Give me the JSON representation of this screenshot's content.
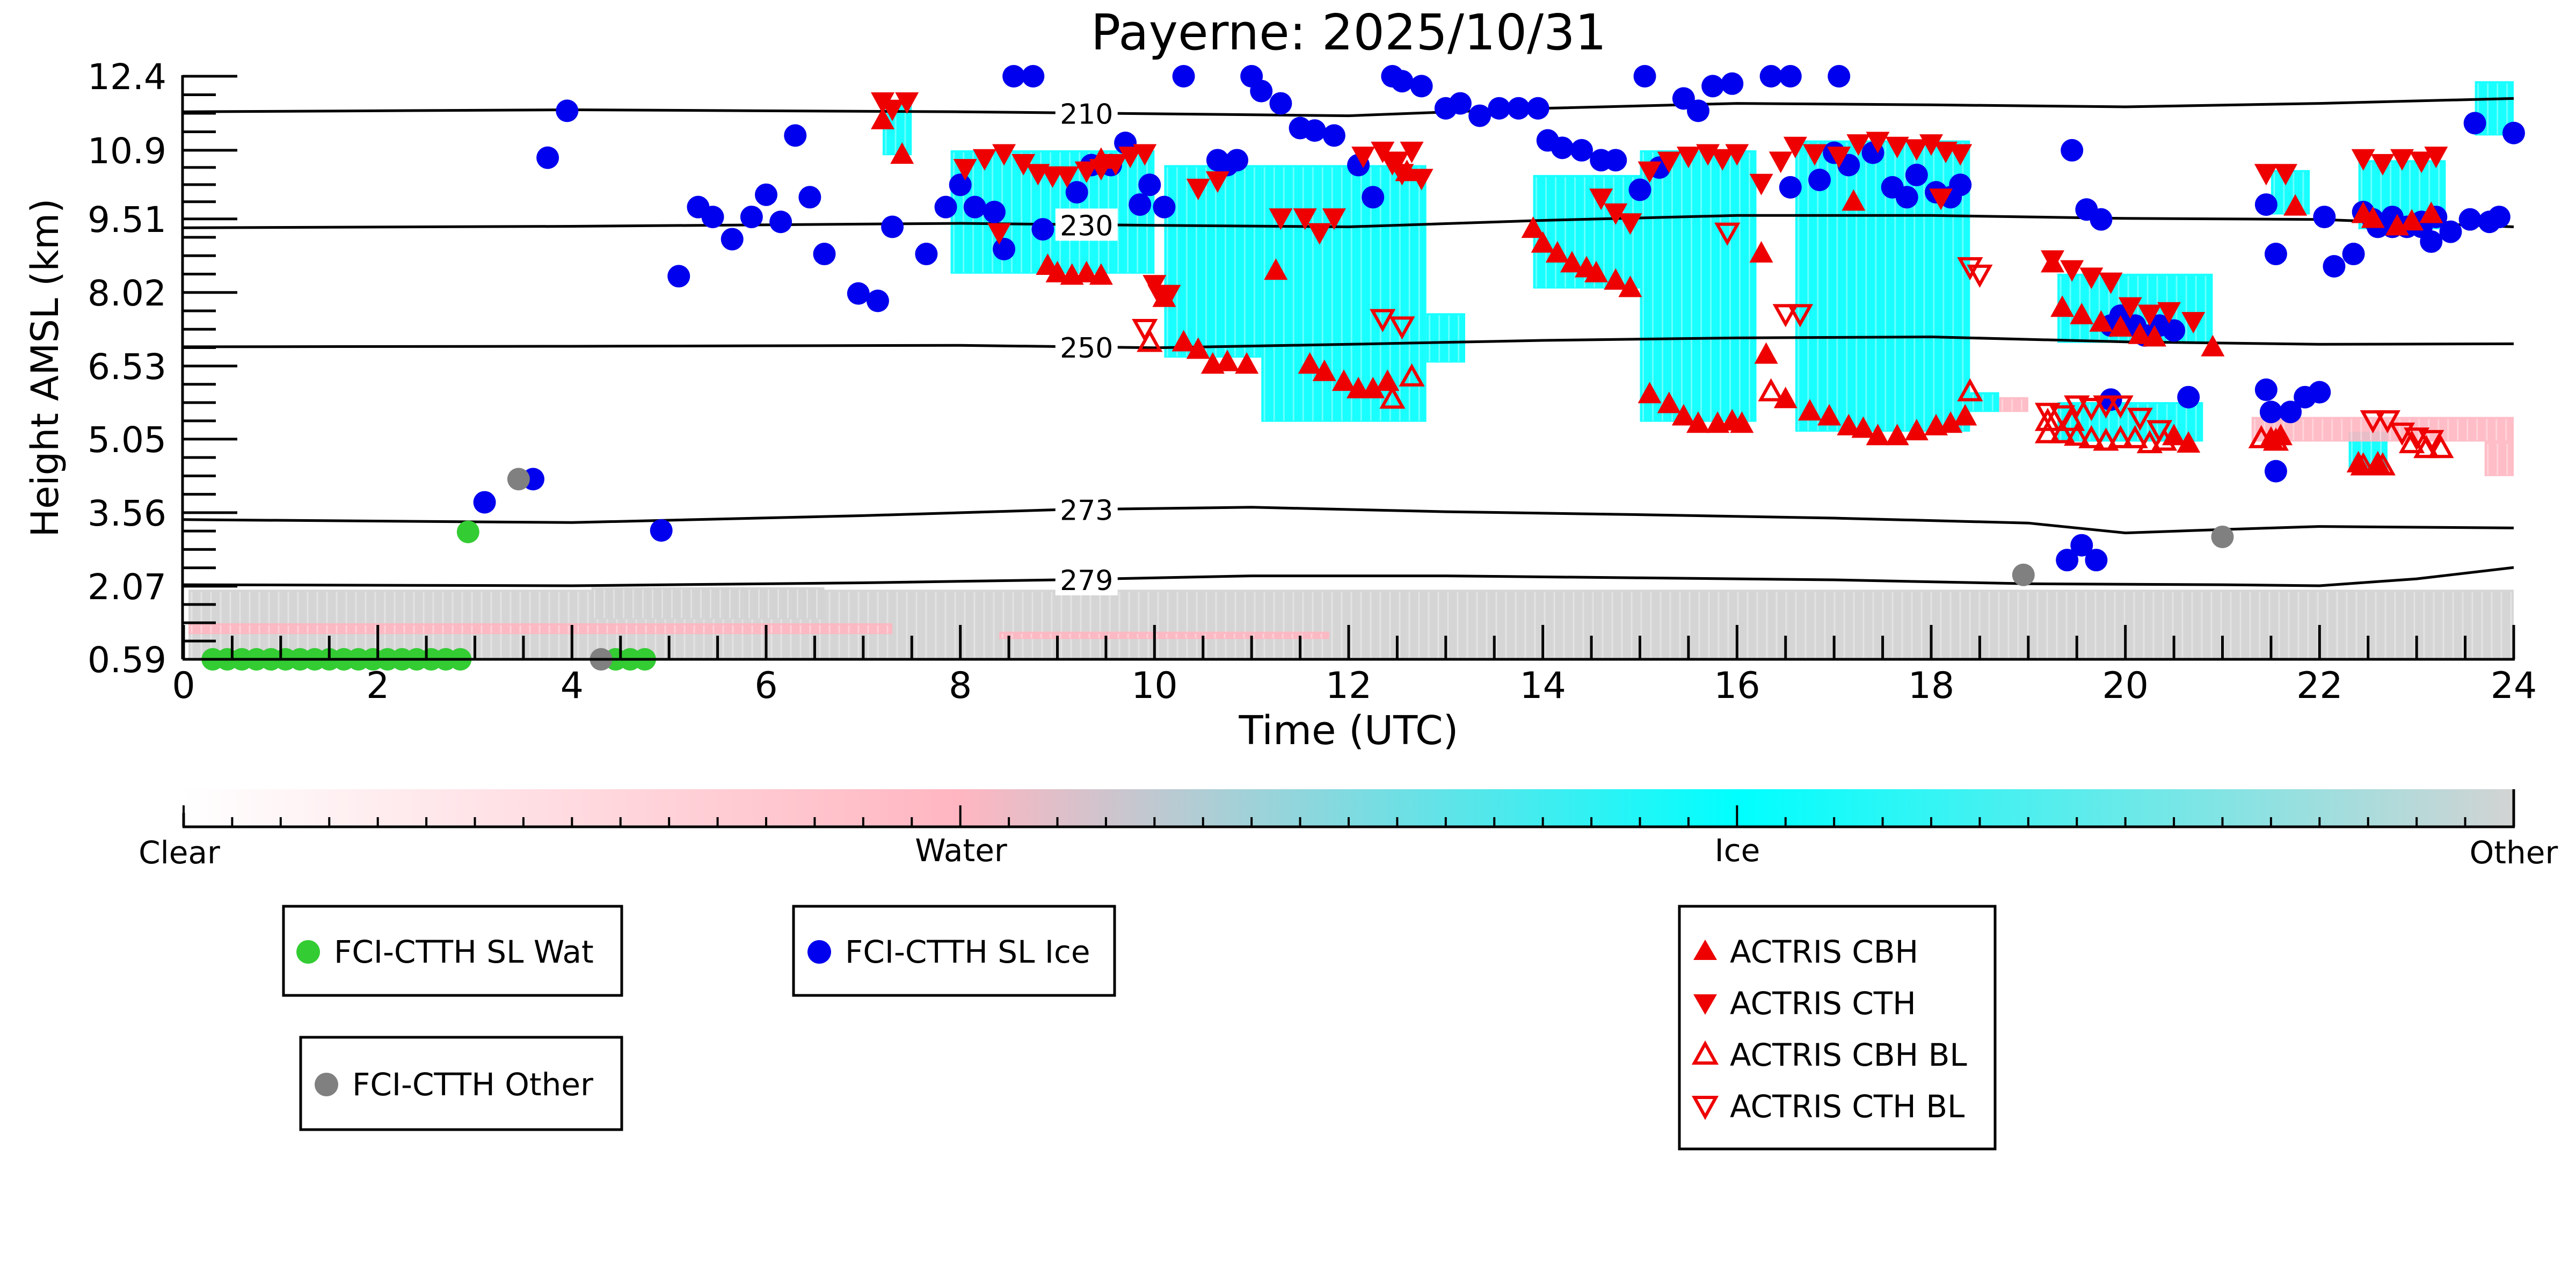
{
  "chart_data": {
    "type": "scatter",
    "title": "Payerne: 2025/10/31",
    "xlabel": "Time (UTC)",
    "ylabel": "Height AMSL (km)",
    "xlim": [
      0,
      24
    ],
    "ylim": [
      0.59,
      12.4
    ],
    "x_ticks": [
      "0",
      "2",
      "4",
      "6",
      "8",
      "10",
      "12",
      "14",
      "16",
      "18",
      "20",
      "22",
      "24"
    ],
    "y_ticks": [
      "0.59",
      "2.07",
      "3.56",
      "5.05",
      "6.53",
      "8.02",
      "9.51",
      "10.9",
      "12.4"
    ],
    "y_tick_values": [
      0.59,
      2.07,
      3.56,
      5.05,
      6.53,
      8.02,
      9.51,
      10.9,
      12.4
    ],
    "colors": {
      "clear": "#ffffff",
      "water": "#ffb6c1",
      "ice": "#00ffff",
      "other": "#d3d3d3",
      "wat_marker": "#33cc33",
      "ice_marker": "#0000ee",
      "other_marker": "#808080",
      "actris": "#ee0000",
      "isotherm": "#000000"
    },
    "colorbar": {
      "labels": [
        "Clear",
        "Water",
        "Ice",
        "Other"
      ]
    },
    "isotherms": [
      {
        "label": "210",
        "x": [
          0,
          4,
          8,
          12,
          14,
          16,
          18,
          20,
          22,
          24
        ],
        "y": [
          11.68,
          11.72,
          11.68,
          11.6,
          11.75,
          11.85,
          11.82,
          11.78,
          11.85,
          11.95
        ]
      },
      {
        "label": "230",
        "x": [
          0,
          4,
          8,
          10,
          12,
          14,
          16,
          18,
          20,
          22,
          24
        ],
        "y": [
          9.33,
          9.36,
          9.42,
          9.38,
          9.35,
          9.48,
          9.58,
          9.58,
          9.52,
          9.5,
          9.35
        ]
      },
      {
        "label": "250",
        "x": [
          0,
          4,
          8,
          10,
          12,
          14,
          16,
          18,
          20,
          22,
          24
        ],
        "y": [
          6.92,
          6.93,
          6.95,
          6.9,
          6.97,
          7.05,
          7.1,
          7.12,
          7.02,
          6.97,
          6.98
        ]
      },
      {
        "label": "273",
        "x": [
          0,
          4,
          7,
          9,
          11,
          13,
          15,
          17,
          19,
          20,
          21,
          22,
          24
        ],
        "y": [
          3.42,
          3.36,
          3.5,
          3.62,
          3.67,
          3.58,
          3.52,
          3.45,
          3.35,
          3.15,
          3.22,
          3.28,
          3.25
        ]
      },
      {
        "label": "279",
        "x": [
          0,
          4,
          7,
          9,
          11,
          13,
          15,
          17,
          19,
          21,
          22,
          23,
          24
        ],
        "y": [
          2.1,
          2.08,
          2.14,
          2.2,
          2.28,
          2.28,
          2.24,
          2.2,
          2.12,
          2.1,
          2.08,
          2.22,
          2.45
        ]
      }
    ],
    "isotherm_label_x": 9.3,
    "regions": [
      {
        "type": "other",
        "x0": 0.05,
        "x1": 24,
        "y0": 0.59,
        "y1": 2.0
      },
      {
        "type": "other",
        "x0": 4.2,
        "x1": 6.6,
        "y0": 1.4,
        "y1": 2.05
      },
      {
        "type": "water",
        "x0": 0.05,
        "x1": 7.3,
        "y0": 1.1,
        "y1": 1.32
      },
      {
        "type": "water",
        "x0": 8.4,
        "x1": 11.8,
        "y0": 1.0,
        "y1": 1.15
      },
      {
        "type": "ice",
        "x0": 7.2,
        "x1": 7.5,
        "y0": 10.8,
        "y1": 11.9
      },
      {
        "type": "ice",
        "x0": 7.9,
        "x1": 10.0,
        "y0": 8.4,
        "y1": 10.9
      },
      {
        "type": "ice",
        "x0": 10.1,
        "x1": 11.1,
        "y0": 6.7,
        "y1": 10.6
      },
      {
        "type": "ice",
        "x0": 11.1,
        "x1": 12.8,
        "y0": 5.4,
        "y1": 10.6
      },
      {
        "type": "ice",
        "x0": 12.8,
        "x1": 13.2,
        "y0": 6.6,
        "y1": 7.6
      },
      {
        "type": "ice",
        "x0": 13.9,
        "x1": 15.0,
        "y0": 8.1,
        "y1": 10.4
      },
      {
        "type": "ice",
        "x0": 15.0,
        "x1": 16.2,
        "y0": 5.4,
        "y1": 10.9
      },
      {
        "type": "ice",
        "x0": 16.6,
        "x1": 18.4,
        "y0": 5.2,
        "y1": 11.1
      },
      {
        "type": "ice",
        "x0": 18.4,
        "x1": 18.7,
        "y0": 5.6,
        "y1": 6.0
      },
      {
        "type": "ice",
        "x0": 19.3,
        "x1": 20.9,
        "y0": 7.0,
        "y1": 8.4
      },
      {
        "type": "ice",
        "x0": 19.3,
        "x1": 20.8,
        "y0": 5.0,
        "y1": 5.8
      },
      {
        "type": "ice",
        "x0": 21.5,
        "x1": 21.9,
        "y0": 9.6,
        "y1": 10.5
      },
      {
        "type": "ice",
        "x0": 22.4,
        "x1": 23.3,
        "y0": 9.3,
        "y1": 10.7
      },
      {
        "type": "ice",
        "x0": 22.3,
        "x1": 22.7,
        "y0": 4.4,
        "y1": 5.2
      },
      {
        "type": "ice",
        "x0": 23.6,
        "x1": 24.0,
        "y0": 11.2,
        "y1": 12.3
      },
      {
        "type": "water",
        "x0": 21.3,
        "x1": 24.0,
        "y0": 5.0,
        "y1": 5.5
      },
      {
        "type": "water",
        "x0": 23.7,
        "x1": 24.0,
        "y0": 4.3,
        "y1": 5.0
      },
      {
        "type": "water",
        "x0": 18.7,
        "x1": 19.0,
        "y0": 5.6,
        "y1": 5.9
      }
    ],
    "series": [
      {
        "name": "FCI-CTTH SL Wat",
        "marker": "circle",
        "color": "#33cc33",
        "x": [
          0.3,
          0.45,
          0.6,
          0.75,
          0.9,
          1.05,
          1.2,
          1.35,
          1.5,
          1.65,
          1.8,
          1.95,
          2.1,
          2.25,
          2.4,
          2.55,
          2.7,
          2.85,
          2.93,
          4.45,
          4.6,
          4.75
        ],
        "y": [
          0.59,
          0.59,
          0.59,
          0.59,
          0.59,
          0.59,
          0.59,
          0.59,
          0.59,
          0.59,
          0.59,
          0.59,
          0.59,
          0.59,
          0.59,
          0.59,
          0.59,
          0.59,
          3.17,
          0.59,
          0.59,
          0.59
        ]
      },
      {
        "name": "FCI-CTTH SL Ice",
        "marker": "circle",
        "color": "#0000ee",
        "x": [
          3.1,
          3.6,
          3.75,
          3.95,
          4.92,
          5.1,
          5.3,
          5.45,
          5.65,
          5.85,
          6.0,
          6.15,
          6.3,
          6.45,
          6.6,
          6.95,
          7.15,
          7.3,
          7.65,
          7.85,
          8.0,
          8.15,
          8.35,
          8.45,
          8.55,
          8.75,
          8.85,
          9.2,
          9.35,
          9.55,
          9.7,
          9.85,
          9.95,
          10.1,
          10.3,
          10.65,
          10.75,
          10.85,
          11.0,
          11.1,
          11.3,
          11.5,
          11.65,
          11.85,
          12.1,
          12.25,
          12.45,
          12.55,
          12.75,
          13.0,
          13.15,
          13.35,
          13.55,
          13.75,
          13.95,
          14.05,
          14.2,
          14.4,
          14.6,
          14.75,
          15.0,
          15.2,
          15.45,
          15.6,
          15.75,
          15.95,
          16.55,
          16.85,
          17.0,
          17.15,
          17.4,
          17.6,
          17.75,
          17.85,
          18.05,
          18.2,
          18.3,
          19.45,
          19.6,
          19.75,
          19.85,
          19.95,
          20.1,
          20.2,
          20.35,
          20.5,
          20.65,
          21.45,
          21.55,
          21.7,
          21.85,
          22.0,
          22.15,
          22.35,
          22.55,
          22.75,
          22.9,
          23.05,
          23.15,
          23.35,
          23.55,
          23.75,
          23.85
        ],
        "y": [
          3.77,
          4.24,
          10.75,
          11.7,
          3.2,
          8.35,
          9.75,
          9.55,
          9.1,
          9.55,
          10.0,
          9.45,
          11.2,
          9.95,
          8.8,
          8.0,
          7.85,
          9.35,
          8.8,
          9.75,
          10.2,
          9.75,
          9.65,
          8.9,
          12.5,
          12.5,
          9.3,
          10.05,
          10.6,
          10.6,
          11.05,
          9.8,
          10.2,
          9.75,
          12.5,
          10.7,
          10.6,
          10.7,
          12.5,
          12.1,
          11.85,
          11.35,
          11.3,
          11.2,
          10.6,
          9.95,
          12.5,
          12.3,
          12.2,
          11.75,
          11.85,
          11.6,
          11.75,
          11.75,
          11.75,
          11.1,
          10.95,
          10.9,
          10.7,
          10.7,
          10.1,
          10.55,
          11.95,
          11.7,
          12.2,
          12.25,
          10.15,
          10.3,
          10.85,
          10.6,
          10.85,
          10.15,
          9.95,
          10.4,
          10.05,
          9.95,
          10.2,
          10.9,
          9.7,
          9.5,
          7.35,
          7.55,
          7.35,
          7.15,
          7.35,
          7.25,
          5.9,
          6.05,
          4.4,
          5.6,
          5.9,
          6.0,
          8.55,
          8.8,
          9.5,
          9.55,
          9.35,
          9.35,
          9.05,
          9.25,
          9.5,
          9.45,
          9.55
        ],
        "x_extra": [
          19.4,
          19.55,
          19.7,
          19.85,
          21.45,
          21.55,
          22.05,
          22.45,
          22.6,
          22.75,
          23.05,
          23.2,
          23.6,
          24.0,
          15.05,
          16.35,
          16.55,
          17.05,
          21.5
        ],
        "y_extra": [
          2.6,
          2.9,
          2.6,
          5.85,
          9.8,
          8.8,
          9.55,
          9.65,
          9.35,
          9.35,
          9.45,
          9.55,
          11.45,
          11.25,
          12.5,
          12.5,
          12.5,
          12.5,
          5.6
        ]
      },
      {
        "name": "FCI-CTTH Other",
        "marker": "circle",
        "color": "#808080",
        "x": [
          3.45,
          4.3,
          18.95,
          21.0
        ],
        "y": [
          4.24,
          0.59,
          2.3,
          3.07
        ]
      },
      {
        "name": "ACTRIS CBH",
        "marker": "triangle-up-filled",
        "color": "#ee0000",
        "x": [
          7.2,
          8.9,
          9.0,
          9.15,
          9.3,
          9.45,
          10.1,
          10.3,
          10.45,
          10.6,
          10.75,
          10.95,
          11.25,
          11.6,
          11.75,
          11.95,
          12.1,
          12.25,
          12.4,
          13.9,
          14.0,
          14.15,
          14.3,
          14.45,
          14.55,
          14.75,
          14.9,
          15.1,
          15.3,
          15.45,
          15.6,
          15.8,
          15.95,
          16.05,
          16.3,
          16.5,
          16.75,
          16.95,
          17.15,
          17.3,
          17.45,
          17.65,
          17.85,
          18.05,
          18.2,
          18.35,
          19.25,
          19.35,
          19.55,
          19.75,
          19.95,
          20.15,
          20.3,
          20.5,
          20.65,
          20.9,
          21.5,
          21.6,
          21.75,
          22.45,
          22.55,
          22.8,
          22.95,
          23.15
        ],
        "y": [
          11.5,
          8.55,
          8.4,
          8.35,
          8.4,
          8.35,
          7.9,
          7.0,
          6.85,
          6.55,
          6.6,
          6.55,
          8.45,
          6.55,
          6.4,
          6.2,
          6.05,
          6.05,
          6.2,
          9.3,
          9.0,
          8.8,
          8.6,
          8.5,
          8.4,
          8.25,
          8.1,
          5.95,
          5.75,
          5.5,
          5.35,
          5.35,
          5.4,
          5.35,
          6.75,
          5.85,
          5.6,
          5.5,
          5.3,
          5.25,
          5.1,
          5.1,
          5.2,
          5.3,
          5.35,
          5.5,
          8.6,
          7.7,
          7.55,
          7.4,
          7.3,
          7.15,
          7.1,
          5.1,
          4.95,
          6.9,
          5.05,
          5.1,
          9.75,
          9.6,
          9.5,
          9.35,
          9.45,
          9.6
        ],
        "x_extra": [
          9.45,
          7.4,
          16.25,
          12.6,
          17.2,
          22.4,
          22.6
        ],
        "y_extra": [
          10.7,
          10.8,
          8.8,
          10.45,
          9.85,
          4.55,
          4.55
        ]
      },
      {
        "name": "ACTRIS CTH",
        "marker": "triangle-down-filled",
        "color": "#ee0000",
        "x": [
          7.2,
          7.3,
          7.45,
          8.05,
          8.25,
          8.45,
          8.65,
          8.8,
          8.95,
          9.1,
          9.3,
          9.45,
          9.6,
          9.75,
          9.9,
          10.0,
          10.15,
          10.45,
          10.65,
          11.3,
          11.55,
          11.7,
          11.85,
          12.15,
          12.35,
          12.5,
          12.65,
          14.6,
          14.75,
          14.9,
          15.1,
          15.3,
          15.5,
          15.7,
          15.85,
          16.0,
          16.25,
          16.45,
          16.6,
          16.8,
          17.05,
          17.25,
          17.45,
          17.65,
          17.85,
          18.0,
          18.15,
          18.3,
          19.25,
          19.45,
          19.65,
          19.85,
          20.05,
          20.25,
          20.45,
          20.7,
          21.45,
          21.65,
          22.45,
          22.65,
          22.85,
          23.05,
          23.2
        ],
        "y": [
          11.9,
          11.75,
          11.9,
          10.55,
          10.75,
          10.85,
          10.65,
          10.45,
          10.4,
          10.4,
          10.5,
          10.55,
          10.65,
          10.8,
          10.85,
          8.2,
          8.0,
          10.15,
          10.3,
          9.55,
          9.55,
          9.25,
          9.55,
          10.8,
          10.9,
          10.7,
          10.9,
          9.95,
          9.65,
          9.45,
          10.5,
          10.7,
          10.8,
          10.85,
          10.75,
          10.85,
          10.25,
          10.7,
          11.0,
          10.85,
          10.8,
          11.05,
          11.1,
          11.0,
          10.95,
          11.05,
          10.9,
          10.85,
          8.7,
          8.5,
          8.35,
          8.25,
          7.75,
          7.6,
          7.65,
          7.45,
          10.45,
          10.45,
          10.75,
          10.65,
          10.75,
          10.7,
          10.8
        ],
        "x_extra": [
          12.55,
          12.75,
          8.4,
          10.05,
          12.45,
          18.1
        ],
        "y_extra": [
          10.45,
          10.35,
          9.25,
          8.0,
          10.65,
          9.95
        ]
      },
      {
        "name": "ACTRIS CBH BL",
        "marker": "triangle-up-open",
        "color": "#ee0000",
        "x": [
          9.95,
          12.45,
          12.65,
          16.35,
          18.4,
          19.2,
          19.35,
          19.5,
          19.65,
          19.8,
          19.95,
          20.1,
          20.25,
          20.4,
          21.4,
          21.55,
          22.45,
          22.65
        ],
        "y": [
          7.0,
          5.85,
          6.3,
          6.0,
          6.0,
          5.15,
          5.15,
          5.1,
          5.05,
          5.0,
          5.05,
          5.05,
          4.95,
          5.0,
          5.05,
          5.0,
          4.5,
          4.5
        ],
        "x_extra": [
          22.95,
          23.1,
          23.25,
          19.2,
          19.45
        ],
        "y_extra": [
          4.95,
          4.85,
          4.85,
          5.4,
          5.4
        ]
      },
      {
        "name": "ACTRIS CTH BL",
        "marker": "triangle-down-open",
        "color": "#ee0000",
        "x": [
          9.9,
          12.35,
          12.55,
          15.9,
          16.5,
          16.65,
          18.4,
          18.5,
          19.2,
          19.35,
          19.5,
          19.65,
          19.8,
          19.95,
          20.15,
          20.35,
          22.55,
          22.7,
          22.85,
          23.0,
          23.15
        ],
        "y": [
          7.3,
          7.5,
          7.35,
          9.25,
          7.6,
          7.6,
          8.55,
          8.4,
          5.6,
          5.55,
          5.75,
          5.7,
          5.75,
          5.75,
          5.5,
          5.25,
          5.45,
          5.45,
          5.2,
          5.1,
          5.05
        ]
      }
    ],
    "legends": [
      {
        "entries": [
          "FCI-CTTH SL Wat"
        ],
        "markers": [
          "circle-green"
        ]
      },
      {
        "entries": [
          "FCI-CTTH SL Ice"
        ],
        "markers": [
          "circle-blue"
        ]
      },
      {
        "entries": [
          "FCI-CTTH Other"
        ],
        "markers": [
          "circle-gray"
        ]
      },
      {
        "entries": [
          "ACTRIS CBH",
          "ACTRIS CTH",
          "ACTRIS CBH BL",
          "ACTRIS CTH BL"
        ],
        "markers": [
          "tri-up-filled",
          "tri-down-filled",
          "tri-up-open",
          "tri-down-open"
        ]
      }
    ]
  }
}
